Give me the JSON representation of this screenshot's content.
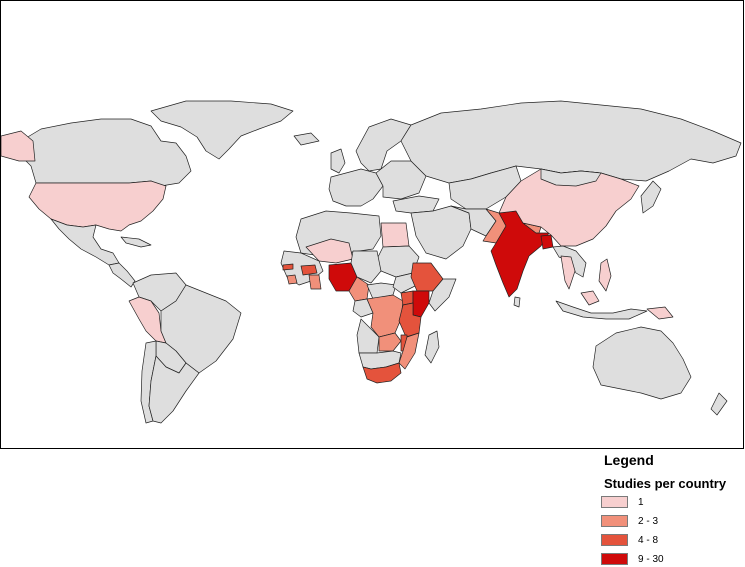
{
  "legend": {
    "title": "Legend",
    "subtitle": "Studies per country",
    "items": [
      {
        "label": "1",
        "color": "#f7cfcf"
      },
      {
        "label": "2 - 3",
        "color": "#f1907a"
      },
      {
        "label": "4 - 8",
        "color": "#e4533c"
      },
      {
        "label": "9 - 30",
        "color": "#cf0a0a"
      }
    ]
  },
  "colors": {
    "no_data": "#dedede",
    "border": "#222222",
    "ocean": "#ffffff"
  },
  "countries": [
    {
      "name": "United States",
      "studies_class": "1"
    },
    {
      "name": "Peru",
      "studies_class": "1"
    },
    {
      "name": "Egypt",
      "studies_class": "1"
    },
    {
      "name": "Niger",
      "studies_class": "1"
    },
    {
      "name": "China",
      "studies_class": "1"
    },
    {
      "name": "Thailand",
      "studies_class": "1"
    },
    {
      "name": "Philippines",
      "studies_class": "1"
    },
    {
      "name": "Malaysia",
      "studies_class": "1"
    },
    {
      "name": "Papua New Guinea",
      "studies_class": "1"
    },
    {
      "name": "Ghana",
      "studies_class": "2 - 3"
    },
    {
      "name": "Sierra Leone",
      "studies_class": "2 - 3"
    },
    {
      "name": "Cameroon",
      "studies_class": "2 - 3"
    },
    {
      "name": "DR Congo",
      "studies_class": "2 - 3"
    },
    {
      "name": "Zambia",
      "studies_class": "2 - 3"
    },
    {
      "name": "Pakistan",
      "studies_class": "2 - 3"
    },
    {
      "name": "Nepal",
      "studies_class": "2 - 3"
    },
    {
      "name": "Mozambique",
      "studies_class": "2 - 3"
    },
    {
      "name": "Ethiopia",
      "studies_class": "4 - 8"
    },
    {
      "name": "Uganda",
      "studies_class": "4 - 8"
    },
    {
      "name": "Tanzania",
      "studies_class": "4 - 8"
    },
    {
      "name": "Malawi",
      "studies_class": "4 - 8"
    },
    {
      "name": "South Africa",
      "studies_class": "4 - 8"
    },
    {
      "name": "The Gambia",
      "studies_class": "4 - 8"
    },
    {
      "name": "Burkina Faso",
      "studies_class": "4 - 8"
    },
    {
      "name": "India",
      "studies_class": "9 - 30"
    },
    {
      "name": "Nigeria",
      "studies_class": "9 - 30"
    },
    {
      "name": "Kenya",
      "studies_class": "9 - 30"
    },
    {
      "name": "Bangladesh",
      "studies_class": "9 - 30"
    }
  ]
}
